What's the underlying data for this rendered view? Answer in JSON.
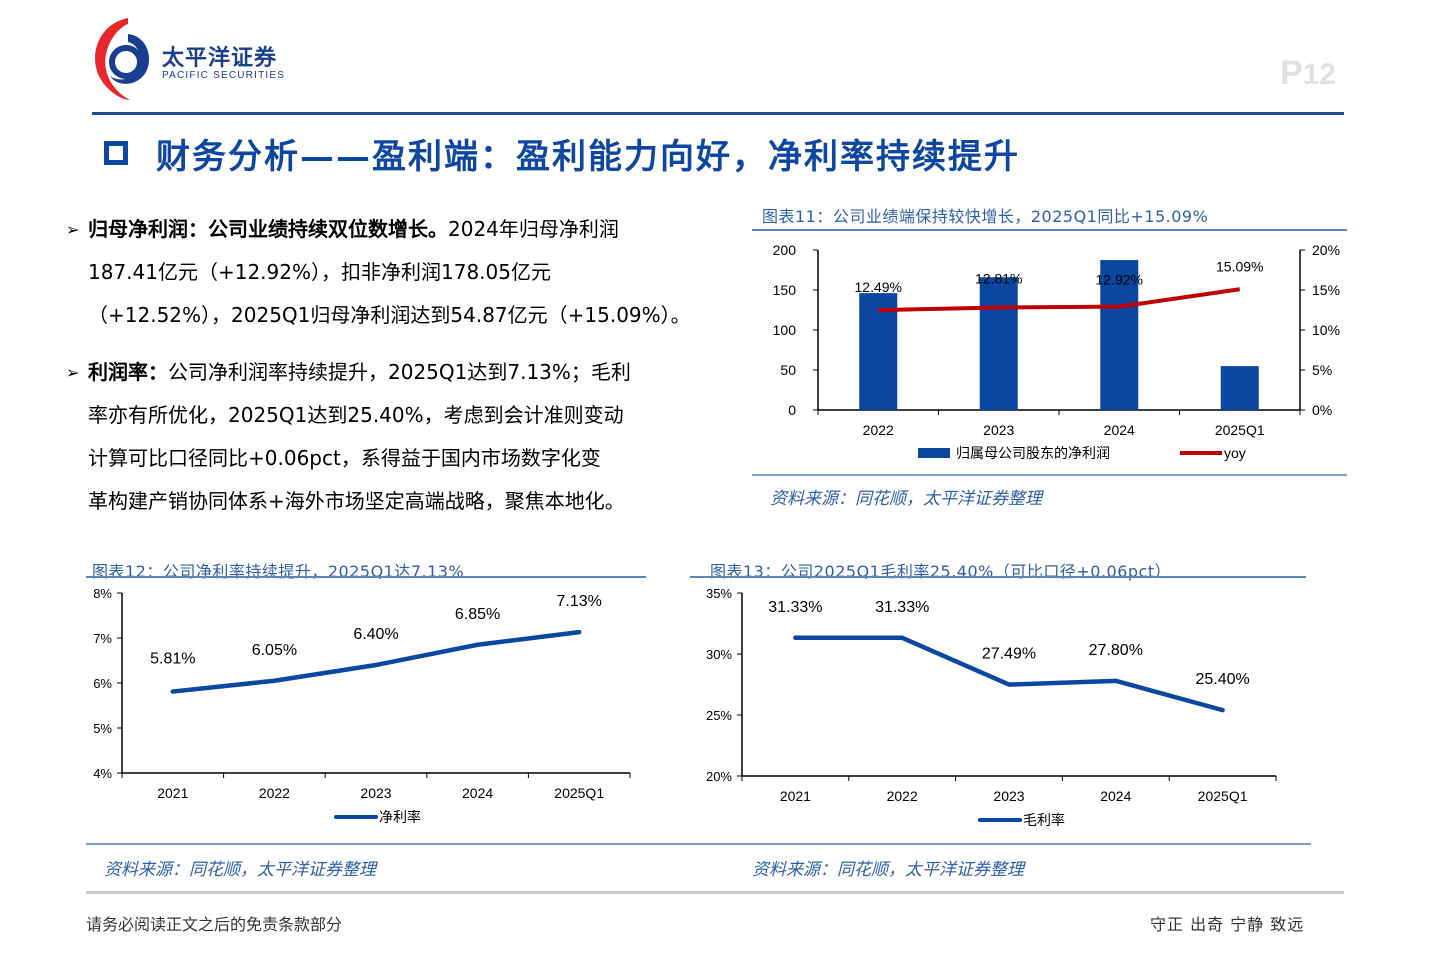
{
  "header": {
    "logo_cn": "太平洋证券",
    "logo_en": "PACIFIC SECURITIES",
    "page_prefix": "P",
    "page_number": "12",
    "section_title": "财务分析——盈利端：盈利能力向好，净利率持续提升"
  },
  "bullets": [
    {
      "label": "归母净利润：公司业绩持续双位数增长。",
      "lines": [
        "2024年归母净利润",
        "187.41亿元（+12.92%），扣非净利润178.05亿元",
        "（+12.52%），2025Q1归母净利润达到54.87亿元（+15.09%）。"
      ]
    },
    {
      "label": "利润率：",
      "lines": [
        "公司净利润率持续提升，2025Q1达到7.13%；毛利",
        "率亦有所优化，2025Q1达到25.40%，考虑到会计准则变动",
        "计算可比口径同比+0.06pct，系得益于国内市场数字化变",
        "革构建产销协同体系+海外市场坚定高端战略，聚焦本地化。"
      ]
    }
  ],
  "chart_data": [
    {
      "id": "chart11",
      "type": "bar",
      "title": "图表11：公司业绩端保持较快增长，2025Q1同比+15.09%",
      "categories": [
        "2022",
        "2023",
        "2024",
        "2025Q1"
      ],
      "series": [
        {
          "name": "归属母公司股东的净利润",
          "type": "bar",
          "axis": "left",
          "color": "#0b47a0",
          "values": [
            146.1,
            166.0,
            187.41,
            54.87
          ]
        },
        {
          "name": "yoy",
          "type": "line",
          "axis": "right",
          "color": "#c00000",
          "values": [
            12.49,
            12.81,
            12.92,
            15.09
          ],
          "labels": [
            "12.49%",
            "12.81%",
            "12.92%",
            "15.09%"
          ]
        }
      ],
      "y_left": {
        "min": 0,
        "max": 200,
        "ticks": [
          "0",
          "50",
          "100",
          "150",
          "200"
        ],
        "tick_values": [
          0,
          50,
          100,
          150,
          200
        ]
      },
      "y_right": {
        "min": 0,
        "max": 20,
        "ticks": [
          "0%",
          "5%",
          "10%",
          "15%",
          "20%"
        ],
        "tick_values": [
          0,
          5,
          10,
          15,
          20
        ]
      },
      "legend": "bottom",
      "grid": false,
      "source": "资料来源：同花顺，太平洋证券整理"
    },
    {
      "id": "chart12",
      "type": "line",
      "title": "图表12：公司净利率持续提升，2025Q1达7.13%",
      "categories": [
        "2021",
        "2022",
        "2023",
        "2024",
        "2025Q1"
      ],
      "series": [
        {
          "name": "净利率",
          "color": "#0b47a0",
          "values": [
            5.81,
            6.05,
            6.4,
            6.85,
            7.13
          ],
          "labels": [
            "5.81%",
            "6.05%",
            "6.40%",
            "6.85%",
            "7.13%"
          ]
        }
      ],
      "y": {
        "min": 4,
        "max": 8,
        "ticks": [
          "4%",
          "5%",
          "6%",
          "7%",
          "8%"
        ],
        "tick_values": [
          4,
          5,
          6,
          7,
          8
        ]
      },
      "legend": "bottom",
      "grid": false,
      "source": "资料来源：同花顺，太平洋证券整理"
    },
    {
      "id": "chart13",
      "type": "line",
      "title": "图表13：公司2025Q1毛利率25.40%（可比口径+0.06pct）",
      "categories": [
        "2021",
        "2022",
        "2023",
        "2024",
        "2025Q1"
      ],
      "series": [
        {
          "name": "毛利率",
          "color": "#0b47a0",
          "values": [
            31.33,
            31.33,
            27.49,
            27.8,
            25.4
          ],
          "labels": [
            "31.33%",
            "31.33%",
            "27.49%",
            "27.80%",
            "25.40%"
          ]
        }
      ],
      "y": {
        "min": 20,
        "max": 35,
        "ticks": [
          "20%",
          "25%",
          "30%",
          "35%"
        ],
        "tick_values": [
          20,
          25,
          30,
          35
        ]
      },
      "legend": "bottom",
      "grid": false,
      "source": "资料来源：同花顺，太平洋证券整理"
    }
  ],
  "footer": {
    "disclaimer": "请务必阅读正文之后的免责条款部分",
    "motto": "守正 出奇 宁静 致远"
  }
}
